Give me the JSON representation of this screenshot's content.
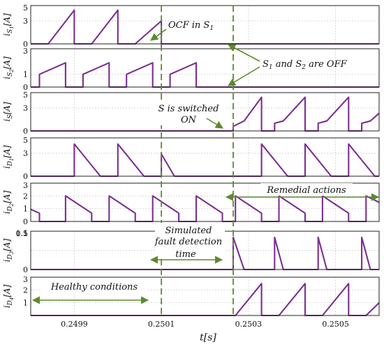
{
  "chart_data": {
    "type": "line",
    "colors": {
      "trace": "#7b2f8f",
      "marker": "#5c8a2e",
      "grid": "#c8c8c8",
      "frame": "#222222"
    },
    "x_axis": {
      "label": "t[s]",
      "range": [
        0.2498,
        0.2506
      ],
      "ticks": [
        0.2499,
        0.2501,
        0.2503,
        0.2505
      ],
      "tick_labels": [
        "0.2499",
        "0.2501",
        "0.2503",
        "0.2505"
      ]
    },
    "markers": {
      "fault_time": 0.2501,
      "action_time": 0.250265
    },
    "panels": [
      {
        "id": "is1",
        "ylabel": "i_{S1}[A]",
        "ylim": [
          0,
          5
        ],
        "ticks": [
          0,
          3,
          5
        ],
        "points": [
          [
            0.2498,
            0
          ],
          [
            0.24984,
            0
          ],
          [
            0.2499,
            4.4
          ],
          [
            0.2499,
            0
          ],
          [
            0.24994,
            0
          ],
          [
            0.25,
            4.4
          ],
          [
            0.25,
            0
          ],
          [
            0.25004,
            0
          ],
          [
            0.2501,
            3.0
          ],
          [
            0.2501,
            0
          ],
          [
            0.2506,
            0
          ]
        ]
      },
      {
        "id": "is2",
        "ylabel": "i_{S2}[A]",
        "ylim": [
          0,
          3
        ],
        "ticks": [
          0,
          1,
          3
        ],
        "points": [
          [
            0.2498,
            0
          ],
          [
            0.24982,
            0
          ],
          [
            0.24982,
            1.0
          ],
          [
            0.24988,
            1.9
          ],
          [
            0.24988,
            0
          ],
          [
            0.24992,
            0
          ],
          [
            0.24992,
            1.0
          ],
          [
            0.24998,
            1.9
          ],
          [
            0.24998,
            0
          ],
          [
            0.25002,
            0
          ],
          [
            0.25002,
            1.0
          ],
          [
            0.25008,
            1.9
          ],
          [
            0.25008,
            0
          ],
          [
            0.25012,
            0
          ],
          [
            0.25012,
            1.0
          ],
          [
            0.25018,
            1.9
          ],
          [
            0.25018,
            0
          ],
          [
            0.2506,
            0
          ]
        ]
      },
      {
        "id": "is",
        "ylabel": "i_{S}[A]",
        "ylim": [
          0,
          5
        ],
        "ticks": [
          0,
          3,
          5
        ],
        "points": [
          [
            0.2498,
            0
          ],
          [
            0.250265,
            0
          ],
          [
            0.250265,
            0.6
          ],
          [
            0.25029,
            1.3
          ],
          [
            0.25033,
            4.4
          ],
          [
            0.25033,
            0
          ],
          [
            0.25036,
            0
          ],
          [
            0.25036,
            1.0
          ],
          [
            0.25038,
            1.3
          ],
          [
            0.25043,
            4.4
          ],
          [
            0.25043,
            0
          ],
          [
            0.25046,
            0
          ],
          [
            0.25046,
            1.0
          ],
          [
            0.25048,
            1.3
          ],
          [
            0.25053,
            4.4
          ],
          [
            0.25053,
            0
          ],
          [
            0.25056,
            0
          ],
          [
            0.25056,
            1.0
          ],
          [
            0.25058,
            1.3
          ],
          [
            0.2506,
            2.3
          ]
        ]
      },
      {
        "id": "id1",
        "ylabel": "i_{D1}[A]",
        "ylim": [
          0,
          5
        ],
        "ticks": [
          0,
          3,
          5
        ],
        "points": [
          [
            0.2498,
            0
          ],
          [
            0.2499,
            0
          ],
          [
            0.2499,
            4.2
          ],
          [
            0.24996,
            0
          ],
          [
            0.25,
            0
          ],
          [
            0.25,
            4.2
          ],
          [
            0.25006,
            0
          ],
          [
            0.2501,
            0
          ],
          [
            0.2501,
            2.9
          ],
          [
            0.25013,
            0
          ],
          [
            0.25033,
            0
          ],
          [
            0.25033,
            4.2
          ],
          [
            0.25039,
            0
          ],
          [
            0.25043,
            0
          ],
          [
            0.25043,
            4.2
          ],
          [
            0.25049,
            0
          ],
          [
            0.25053,
            0
          ],
          [
            0.25053,
            4.2
          ],
          [
            0.25059,
            0
          ],
          [
            0.2506,
            0
          ]
        ]
      },
      {
        "id": "id2",
        "ylabel": "i_{D2}[A]",
        "ylim": [
          0,
          3
        ],
        "ticks": [
          0,
          1,
          2,
          3
        ],
        "points": [
          [
            0.2498,
            0.95
          ],
          [
            0.24982,
            0.65
          ],
          [
            0.24982,
            0
          ],
          [
            0.24988,
            0
          ],
          [
            0.24988,
            2.0
          ],
          [
            0.24994,
            0.65
          ],
          [
            0.24994,
            0
          ],
          [
            0.24998,
            0
          ],
          [
            0.24998,
            2.0
          ],
          [
            0.25004,
            0.65
          ],
          [
            0.25004,
            0
          ],
          [
            0.25008,
            0
          ],
          [
            0.25008,
            2.0
          ],
          [
            0.25014,
            0.65
          ],
          [
            0.25014,
            0
          ],
          [
            0.25018,
            0
          ],
          [
            0.25018,
            2.0
          ],
          [
            0.25024,
            0.65
          ],
          [
            0.25024,
            0
          ],
          [
            0.25027,
            0
          ],
          [
            0.25027,
            2.0
          ],
          [
            0.25033,
            0.65
          ],
          [
            0.25033,
            0
          ],
          [
            0.25037,
            0
          ],
          [
            0.25037,
            2.0
          ],
          [
            0.25043,
            0.65
          ],
          [
            0.25043,
            0
          ],
          [
            0.25047,
            0
          ],
          [
            0.25047,
            2.0
          ],
          [
            0.25053,
            0.65
          ],
          [
            0.25053,
            0
          ],
          [
            0.25057,
            0
          ],
          [
            0.25057,
            2.0
          ],
          [
            0.2506,
            1.5
          ]
        ]
      },
      {
        "id": "id3",
        "ylabel": "i_{D3}[A]",
        "ylim": [
          0,
          0.5
        ],
        "ticks": [
          0,
          0.5,
          1,
          1.5
        ],
        "tick_labels": [
          "0",
          "0.5",
          "1",
          "1.5"
        ],
        "points": [
          [
            0.2498,
            0
          ],
          [
            0.250265,
            0
          ],
          [
            0.250265,
            0.42
          ],
          [
            0.25029,
            0
          ],
          [
            0.25036,
            0
          ],
          [
            0.25036,
            0.42
          ],
          [
            0.25038,
            0
          ],
          [
            0.25046,
            0
          ],
          [
            0.25046,
            0.42
          ],
          [
            0.25048,
            0
          ],
          [
            0.25056,
            0
          ],
          [
            0.25056,
            0.42
          ],
          [
            0.25058,
            0
          ],
          [
            0.2506,
            0
          ]
        ]
      },
      {
        "id": "id4",
        "ylabel": "i_{D4}[A]",
        "ylim": [
          0,
          3
        ],
        "ticks": [
          1,
          2,
          3
        ],
        "points": [
          [
            0.2498,
            0
          ],
          [
            0.25027,
            0
          ],
          [
            0.25033,
            2.5
          ],
          [
            0.25033,
            0
          ],
          [
            0.25037,
            0
          ],
          [
            0.25043,
            2.5
          ],
          [
            0.25043,
            0
          ],
          [
            0.25047,
            0
          ],
          [
            0.25053,
            2.5
          ],
          [
            0.25053,
            0
          ],
          [
            0.25057,
            0
          ],
          [
            0.2506,
            1.0
          ]
        ]
      }
    ],
    "annotations": {
      "ocf": "OCF in S",
      "ocf_sub": "1",
      "s1s2_s": "S",
      "s1s2_sub1": "1",
      "s1s2_and": " and S",
      "s1s2_sub2": "2",
      "s1s2_tail": " are OFF",
      "sw1": "S is switched",
      "sw2": "ON",
      "remedial": "Remedial actions",
      "sim1": "Simulated",
      "sim2": "fault detection",
      "sim3": "time",
      "healthy": "Healthy conditions"
    }
  }
}
